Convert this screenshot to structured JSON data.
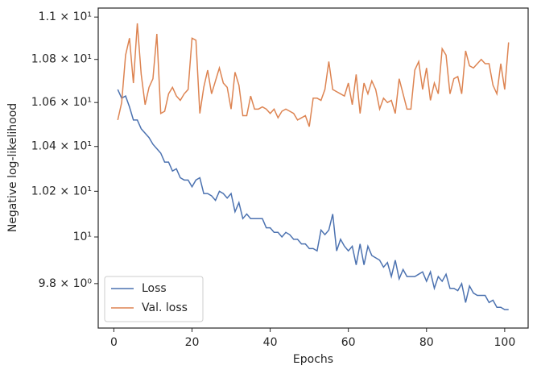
{
  "chart_data": {
    "type": "line",
    "xlabel": "Epochs",
    "ylabel": "Negative log-likelihood",
    "yscale": "log",
    "legend": "lower left",
    "xlim": [
      -4,
      106
    ],
    "ylim": [
      9.613,
      11.043
    ],
    "xticks": [
      0,
      20,
      40,
      60,
      80,
      100
    ],
    "yticks": [
      {
        "value": 9.8,
        "label": "9.8 × 10⁰"
      },
      {
        "value": 10,
        "label": "10¹"
      },
      {
        "value": 10.2,
        "label": "1.02 × 10¹"
      },
      {
        "value": 10.4,
        "label": "1.04 × 10¹"
      },
      {
        "value": 10.6,
        "label": "1.06 × 10¹"
      },
      {
        "value": 10.8,
        "label": "1.08 × 10¹"
      },
      {
        "value": 11,
        "label": "1.1 × 10¹"
      }
    ],
    "x": [
      1,
      2,
      3,
      4,
      5,
      6,
      7,
      8,
      9,
      10,
      11,
      12,
      13,
      14,
      15,
      16,
      17,
      18,
      19,
      20,
      21,
      22,
      23,
      24,
      25,
      26,
      27,
      28,
      29,
      30,
      31,
      32,
      33,
      34,
      35,
      36,
      37,
      38,
      39,
      40,
      41,
      42,
      43,
      44,
      45,
      46,
      47,
      48,
      49,
      50,
      51,
      52,
      53,
      54,
      55,
      56,
      57,
      58,
      59,
      60,
      61,
      62,
      63,
      64,
      65,
      66,
      67,
      68,
      69,
      70,
      71,
      72,
      73,
      74,
      75,
      76,
      77,
      78,
      79,
      80,
      81,
      82,
      83,
      84,
      85,
      86,
      87,
      88,
      89,
      90,
      91,
      92,
      93,
      94,
      95,
      96,
      97,
      98,
      99,
      100,
      101
    ],
    "series": [
      {
        "name": "Loss",
        "color": "#4c72b0",
        "values": [
          10.66,
          10.62,
          10.63,
          10.58,
          10.52,
          10.52,
          10.48,
          10.46,
          10.44,
          10.41,
          10.39,
          10.37,
          10.33,
          10.33,
          10.29,
          10.3,
          10.26,
          10.25,
          10.25,
          10.22,
          10.25,
          10.26,
          10.19,
          10.19,
          10.18,
          10.16,
          10.2,
          10.19,
          10.17,
          10.19,
          10.11,
          10.15,
          10.08,
          10.1,
          10.08,
          10.08,
          10.08,
          10.08,
          10.04,
          10.04,
          10.02,
          10.02,
          10.0,
          10.02,
          10.01,
          9.99,
          9.99,
          9.97,
          9.97,
          9.95,
          9.95,
          9.94,
          10.03,
          10.01,
          10.03,
          10.1,
          9.94,
          9.99,
          9.96,
          9.94,
          9.96,
          9.88,
          9.97,
          9.88,
          9.96,
          9.92,
          9.91,
          9.9,
          9.87,
          9.89,
          9.83,
          9.9,
          9.82,
          9.86,
          9.83,
          9.83,
          9.83,
          9.84,
          9.85,
          9.81,
          9.85,
          9.78,
          9.83,
          9.81,
          9.84,
          9.78,
          9.78,
          9.77,
          9.8,
          9.72,
          9.79,
          9.76,
          9.75,
          9.75,
          9.75,
          9.72,
          9.73,
          9.7,
          9.7,
          9.69,
          9.69
        ]
      },
      {
        "name": "Val. loss",
        "color": "#dd8452",
        "values": [
          10.52,
          10.6,
          10.82,
          10.9,
          10.69,
          10.97,
          10.73,
          10.59,
          10.67,
          10.71,
          10.92,
          10.55,
          10.56,
          10.64,
          10.67,
          10.63,
          10.61,
          10.64,
          10.66,
          10.9,
          10.89,
          10.55,
          10.67,
          10.75,
          10.64,
          10.7,
          10.76,
          10.69,
          10.67,
          10.57,
          10.74,
          10.68,
          10.54,
          10.54,
          10.63,
          10.57,
          10.57,
          10.58,
          10.57,
          10.55,
          10.57,
          10.53,
          10.56,
          10.57,
          10.56,
          10.55,
          10.52,
          10.53,
          10.54,
          10.49,
          10.62,
          10.62,
          10.61,
          10.66,
          10.79,
          10.66,
          10.65,
          10.64,
          10.63,
          10.69,
          10.59,
          10.73,
          10.55,
          10.69,
          10.64,
          10.7,
          10.66,
          10.57,
          10.62,
          10.6,
          10.61,
          10.55,
          10.71,
          10.64,
          10.57,
          10.57,
          10.75,
          10.79,
          10.66,
          10.76,
          10.61,
          10.69,
          10.64,
          10.85,
          10.82,
          10.64,
          10.71,
          10.72,
          10.64,
          10.84,
          10.77,
          10.76,
          10.78,
          10.8,
          10.78,
          10.78,
          10.68,
          10.64,
          10.78,
          10.66,
          10.88
        ]
      }
    ]
  }
}
